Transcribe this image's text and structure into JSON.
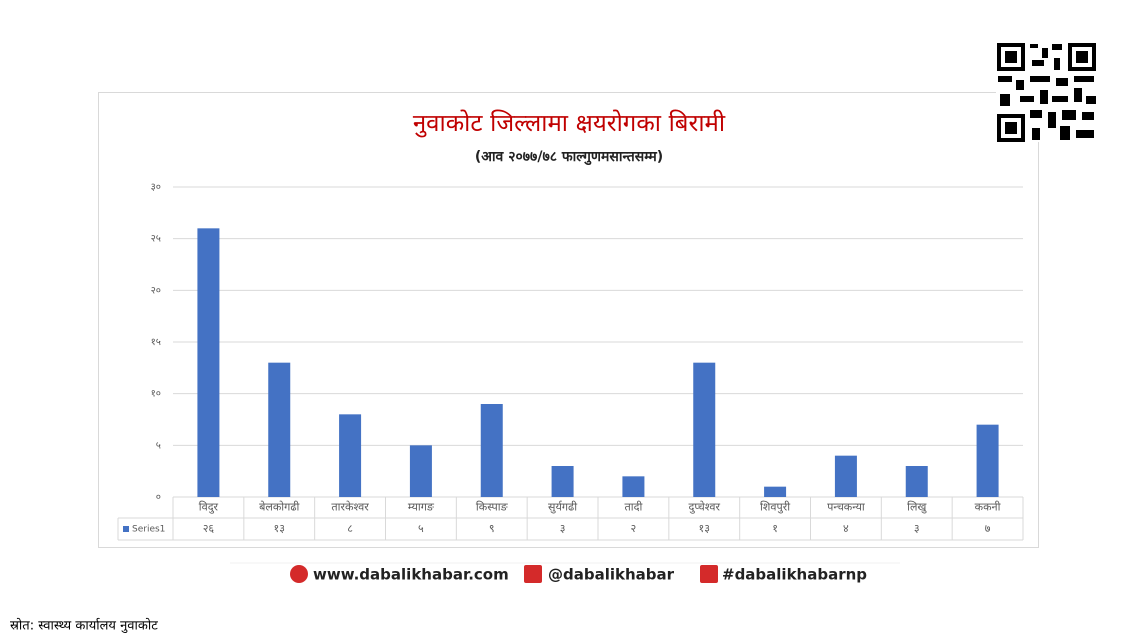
{
  "chart_data": {
    "type": "bar",
    "title": "नुवाकोट जिल्लामा क्षयरोगका बिरामी",
    "subtitle": "(आव २०७७/७८ फाल्गुणमसान्तसम्म)",
    "categories": [
      "विदुर",
      "बेलकोगढी",
      "तारकेश्वर",
      "म्यागङ",
      "किस्पाङ",
      "सुर्यगढी",
      "तादी",
      "दुप्चेश्वर",
      "शिवपुरी",
      "पन्चकन्या",
      "लिखु",
      "ककनी"
    ],
    "series": [
      {
        "name": "Series1",
        "color": "#4472c4",
        "values": [
          26,
          13,
          8,
          5,
          9,
          3,
          2,
          13,
          1,
          4,
          3,
          7
        ],
        "value_labels": [
          "२६",
          "१३",
          "८",
          "५",
          "९",
          "३",
          "२",
          "१३",
          "१",
          "४",
          "३",
          "७"
        ]
      }
    ],
    "ylim": [
      0,
      30
    ],
    "yticks": [
      {
        "value": 0,
        "label": "०"
      },
      {
        "value": 5,
        "label": "५"
      },
      {
        "value": 10,
        "label": "१०"
      },
      {
        "value": 15,
        "label": "१५"
      },
      {
        "value": 20,
        "label": "२०"
      },
      {
        "value": 25,
        "label": "२५"
      },
      {
        "value": 30,
        "label": "३०"
      }
    ],
    "grid": true
  },
  "footer": {
    "website": "www.dabalikhabar.com",
    "facebook": "@dabalikhabar",
    "twitter": "#dabalikhabarnp"
  },
  "source": "स्रोत: स्वास्थ्य कार्यालय नुवाकोट"
}
